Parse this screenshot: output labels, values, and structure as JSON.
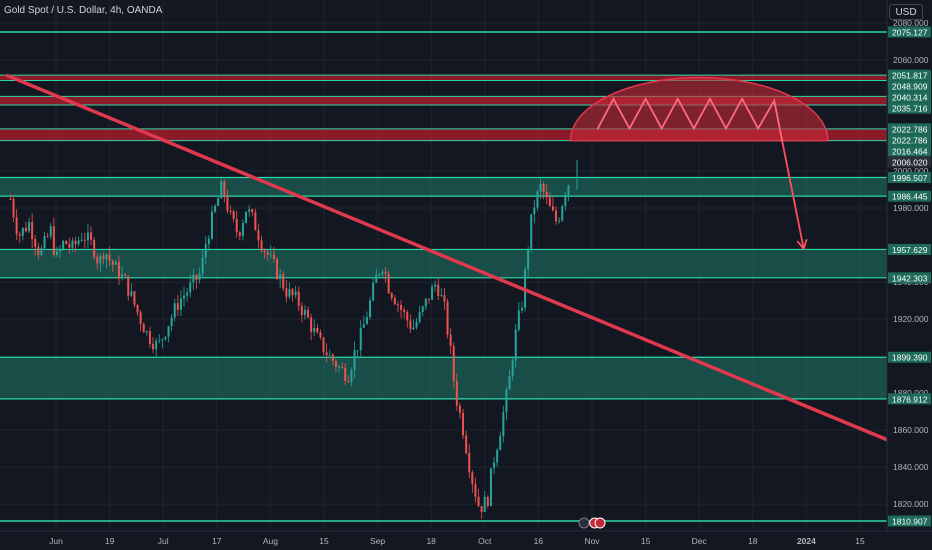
{
  "header": {
    "title": "Gold Spot / U.S. Dollar, 4h, OANDA",
    "currency_button": "USD"
  },
  "colors": {
    "background": "#131722",
    "grid": "#1f2430",
    "axis_text": "#b2b5be",
    "zone_fill": "#1f7a66",
    "zone_line": "#2bd9a8",
    "resistance_fill": "#b71c2c",
    "trendline": "#e0384d",
    "candle_up": "#26a69a",
    "candle_down": "#ef5350",
    "label_bg": "#1e6b5a"
  },
  "chart_data": {
    "type": "candlestick",
    "title": "Gold Spot / U.S. Dollar, 4h, OANDA",
    "ylim": [
      1810,
      2080
    ],
    "y_ticks": [
      "2080.000",
      "2060.000",
      "2000.000",
      "1980.000",
      "1940.000",
      "1920.000",
      "1880.000",
      "1860.000",
      "1840.000",
      "1820.000"
    ],
    "x_ticks": [
      {
        "label": "Jun",
        "x": 0.0
      },
      {
        "label": "19",
        "x": 1.0
      },
      {
        "label": "Jul",
        "x": 2.0
      },
      {
        "label": "17",
        "x": 3.0
      },
      {
        "label": "Aug",
        "x": 4.0
      },
      {
        "label": "15",
        "x": 5.0
      },
      {
        "label": "Sep",
        "x": 6.0
      },
      {
        "label": "18",
        "x": 7.0
      },
      {
        "label": "Oct",
        "x": 8.0
      },
      {
        "label": "16",
        "x": 9.0
      },
      {
        "label": "Nov",
        "x": 10.0
      },
      {
        "label": "15",
        "x": 11.0
      },
      {
        "label": "Dec",
        "x": 12.0
      },
      {
        "label": "18",
        "x": 13.0
      },
      {
        "label": "2024",
        "x": 14.0
      },
      {
        "label": "15",
        "x": 15.0
      }
    ],
    "price_labels": [
      "2075.127",
      "2051.817",
      "2048.909",
      "2040.314",
      "2035.716",
      "2022.786",
      "2022.786",
      "2016.464",
      "2006.020",
      "1996.507",
      "1986.445",
      "1957.629",
      "1942.303",
      "1899.390",
      "1876.912",
      "1810.907"
    ],
    "demand_zones": [
      [
        1986.445,
        1996.507
      ],
      [
        1942.303,
        1957.629
      ],
      [
        1876.912,
        1899.39
      ]
    ],
    "resistance_zones": [
      [
        2048.909,
        2051.817
      ],
      [
        2035.716,
        2040.314
      ],
      [
        2016.464,
        2022.786
      ]
    ],
    "horizontal_lines": [
      2075.127,
      1810.907
    ],
    "trendline": [
      [
        -0.9,
        2051.5
      ],
      [
        16.7,
        1840.5
      ]
    ],
    "arc_pattern": {
      "x_center": 12.0,
      "half_width": 2.4,
      "base": 2016.464,
      "top": 2050.5
    },
    "zigzag": [
      [
        10.1,
        2022.5
      ],
      [
        10.4,
        2039
      ],
      [
        10.7,
        2023
      ],
      [
        11.0,
        2039
      ],
      [
        11.3,
        2023
      ],
      [
        11.6,
        2039
      ],
      [
        11.9,
        2023
      ],
      [
        12.2,
        2039
      ],
      [
        12.5,
        2023
      ],
      [
        12.8,
        2039
      ],
      [
        13.1,
        2023
      ],
      [
        13.4,
        2038
      ],
      [
        13.55,
        2016
      ]
    ],
    "arrow": [
      [
        13.55,
        2016
      ],
      [
        13.95,
        1958
      ]
    ],
    "price_path": [
      [
        -0.85,
        1985
      ],
      [
        -0.7,
        1965
      ],
      [
        -0.5,
        1972
      ],
      [
        -0.3,
        1955
      ],
      [
        -0.1,
        1968
      ],
      [
        0.0,
        1952
      ],
      [
        0.15,
        1962
      ],
      [
        0.3,
        1958
      ],
      [
        0.5,
        1966
      ],
      [
        0.7,
        1959
      ],
      [
        0.8,
        1950
      ],
      [
        0.9,
        1958
      ],
      [
        1.0,
        1952
      ],
      [
        1.15,
        1946
      ],
      [
        1.3,
        1940
      ],
      [
        1.5,
        1925
      ],
      [
        1.7,
        1912
      ],
      [
        1.9,
        1905
      ],
      [
        2.1,
        1918
      ],
      [
        2.3,
        1930
      ],
      [
        2.5,
        1937
      ],
      [
        2.7,
        1945
      ],
      [
        2.8,
        1962
      ],
      [
        2.95,
        1978
      ],
      [
        3.1,
        1992
      ],
      [
        3.25,
        1975
      ],
      [
        3.4,
        1966
      ],
      [
        3.55,
        1980
      ],
      [
        3.7,
        1972
      ],
      [
        3.85,
        1960
      ],
      [
        4.0,
        1952
      ],
      [
        4.15,
        1944
      ],
      [
        4.3,
        1935
      ],
      [
        4.5,
        1930
      ],
      [
        4.7,
        1920
      ],
      [
        4.9,
        1908
      ],
      [
        5.1,
        1900
      ],
      [
        5.3,
        1893
      ],
      [
        5.45,
        1890
      ],
      [
        5.55,
        1900
      ],
      [
        5.7,
        1912
      ],
      [
        5.85,
        1928
      ],
      [
        6.0,
        1945
      ],
      [
        6.1,
        1950
      ],
      [
        6.2,
        1938
      ],
      [
        6.35,
        1930
      ],
      [
        6.5,
        1922
      ],
      [
        6.65,
        1915
      ],
      [
        6.8,
        1922
      ],
      [
        6.95,
        1932
      ],
      [
        7.1,
        1940
      ],
      [
        7.25,
        1925
      ],
      [
        7.35,
        1905
      ],
      [
        7.45,
        1880
      ],
      [
        7.6,
        1860
      ],
      [
        7.75,
        1835
      ],
      [
        7.9,
        1818
      ],
      [
        8.05,
        1822
      ],
      [
        8.15,
        1842
      ],
      [
        8.3,
        1862
      ],
      [
        8.45,
        1885
      ],
      [
        8.55,
        1908
      ],
      [
        8.7,
        1930
      ],
      [
        8.8,
        1958
      ],
      [
        8.9,
        1980
      ],
      [
        9.05,
        1992
      ],
      [
        9.2,
        1980
      ],
      [
        9.35,
        1972
      ],
      [
        9.5,
        1990
      ],
      [
        9.6,
        1996
      ]
    ],
    "last_price": 2006.02
  }
}
